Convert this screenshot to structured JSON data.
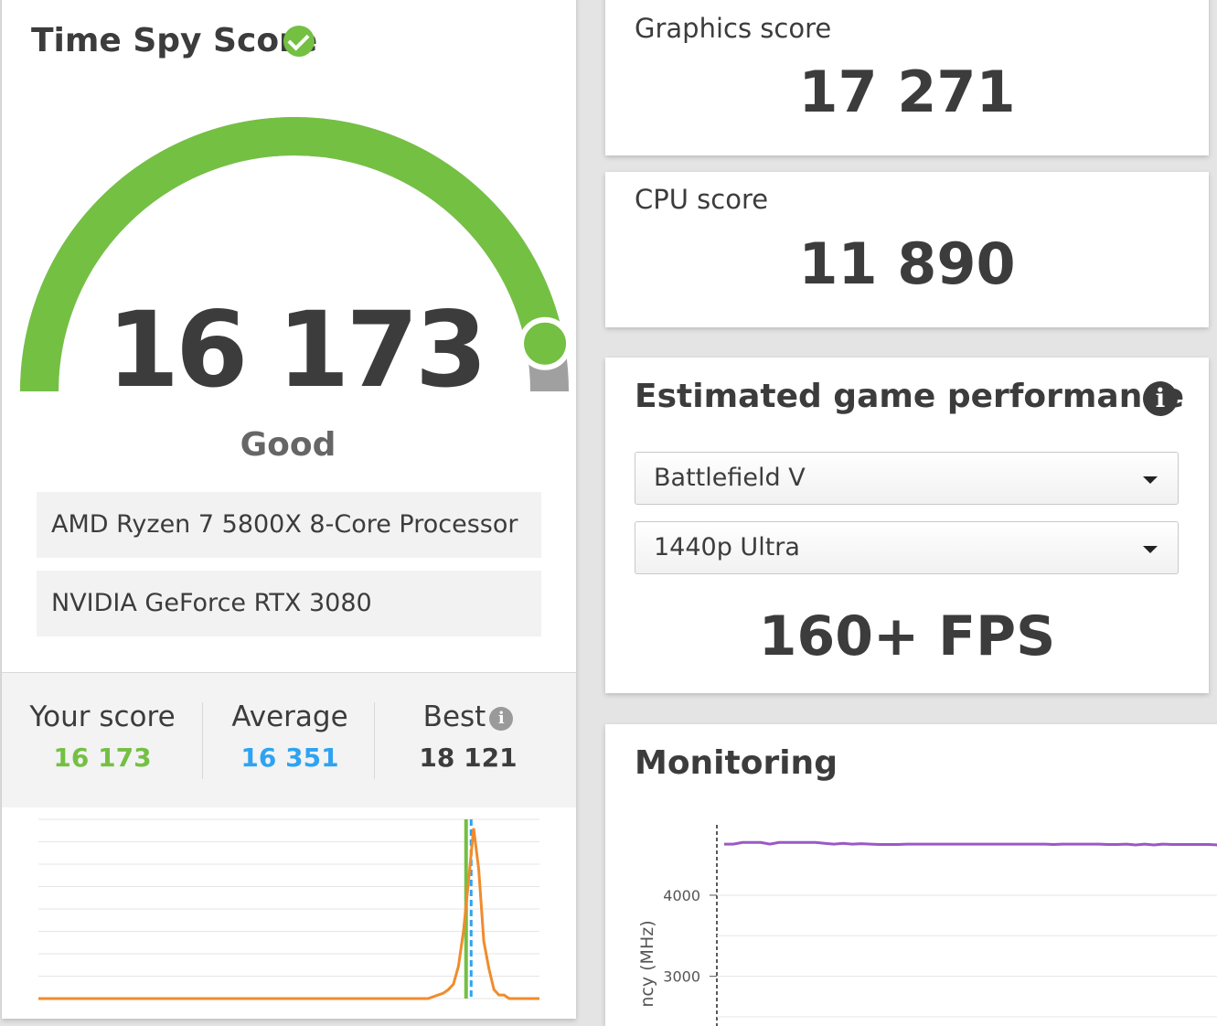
{
  "score_card": {
    "title": "Time Spy Score",
    "check_icon": "check-circle-icon",
    "score": "16 173",
    "score_fraction": 0.94,
    "rating": "Good",
    "cpu": "AMD Ryzen 7 5800X 8-Core Processor",
    "gpu": "NVIDIA GeForce RTX 3080",
    "stats": {
      "your_score_label": "Your score",
      "your_score_value": "16 173",
      "average_label": "Average",
      "average_value": "16 351",
      "best_label": "Best",
      "best_value": "18 121"
    }
  },
  "graphics": {
    "label": "Graphics score",
    "value": "17 271"
  },
  "cpu_score": {
    "label": "CPU score",
    "value": "11 890"
  },
  "game_performance": {
    "title": "Estimated game performance",
    "info_icon": "info-icon",
    "game": "Battlefield V",
    "preset": "1440p Ultra",
    "fps": "160+ FPS"
  },
  "monitoring": {
    "title": "Monitoring",
    "ylabel": "ncy (MHz)"
  },
  "colors": {
    "green": "#74c043",
    "blue": "#2ea3f2",
    "orange": "#f08c2c",
    "purple": "#9b59c6",
    "gray": "#a0a0a0",
    "text": "#3c3c3c"
  },
  "chart_data": [
    {
      "type": "line",
      "title": "",
      "xlabel": "",
      "ylabel": "",
      "series": [
        {
          "values": [
            0,
            0,
            0,
            0,
            0,
            0,
            0,
            0,
            0,
            0,
            0,
            0,
            0,
            0,
            0,
            0,
            0,
            0,
            0,
            0,
            0,
            0,
            0,
            0,
            0,
            0,
            0,
            0,
            0,
            0,
            0,
            0,
            0,
            0,
            0,
            0,
            0,
            0,
            0,
            0,
            0,
            0,
            0,
            0,
            0,
            0,
            0,
            0,
            0,
            0,
            0,
            0,
            0,
            0,
            0,
            0,
            0,
            0,
            0,
            0,
            0,
            0,
            0,
            0,
            0,
            0,
            0,
            0,
            0,
            0,
            0,
            0,
            0,
            0,
            0,
            0,
            0,
            0,
            0.01,
            0.02,
            0.03,
            0.05,
            0.08,
            0.18,
            0.38,
            0.66,
            0.95,
            0.72,
            0.32,
            0.17,
            0.05,
            0.02,
            0.02,
            0,
            0,
            0,
            0,
            0,
            0,
            0
          ]
        }
      ],
      "markers": {
        "your_score_x": 84.5,
        "average_x": 85.5
      }
    },
    {
      "type": "line",
      "title": "",
      "xlabel": "",
      "ylabel": "ncy (MHz)",
      "ylim": [
        2500,
        4800
      ],
      "yticks": [
        4000,
        3000
      ],
      "series": [
        {
          "values": [
            4630,
            4630,
            4650,
            4650,
            4650,
            4630,
            4650,
            4650,
            4650,
            4650,
            4650,
            4640,
            4630,
            4640,
            4630,
            4635,
            4630,
            4625,
            4625,
            4625,
            4630,
            4630,
            4630,
            4630,
            4630,
            4630,
            4630,
            4630,
            4630,
            4630,
            4630,
            4630,
            4630,
            4630,
            4630,
            4630,
            4625,
            4630,
            4630,
            4630,
            4630,
            4630,
            4625,
            4625,
            4630,
            4620,
            4630,
            4620,
            4630,
            4625,
            4625,
            4625,
            4625,
            4625,
            4620,
            4620
          ]
        }
      ]
    }
  ]
}
